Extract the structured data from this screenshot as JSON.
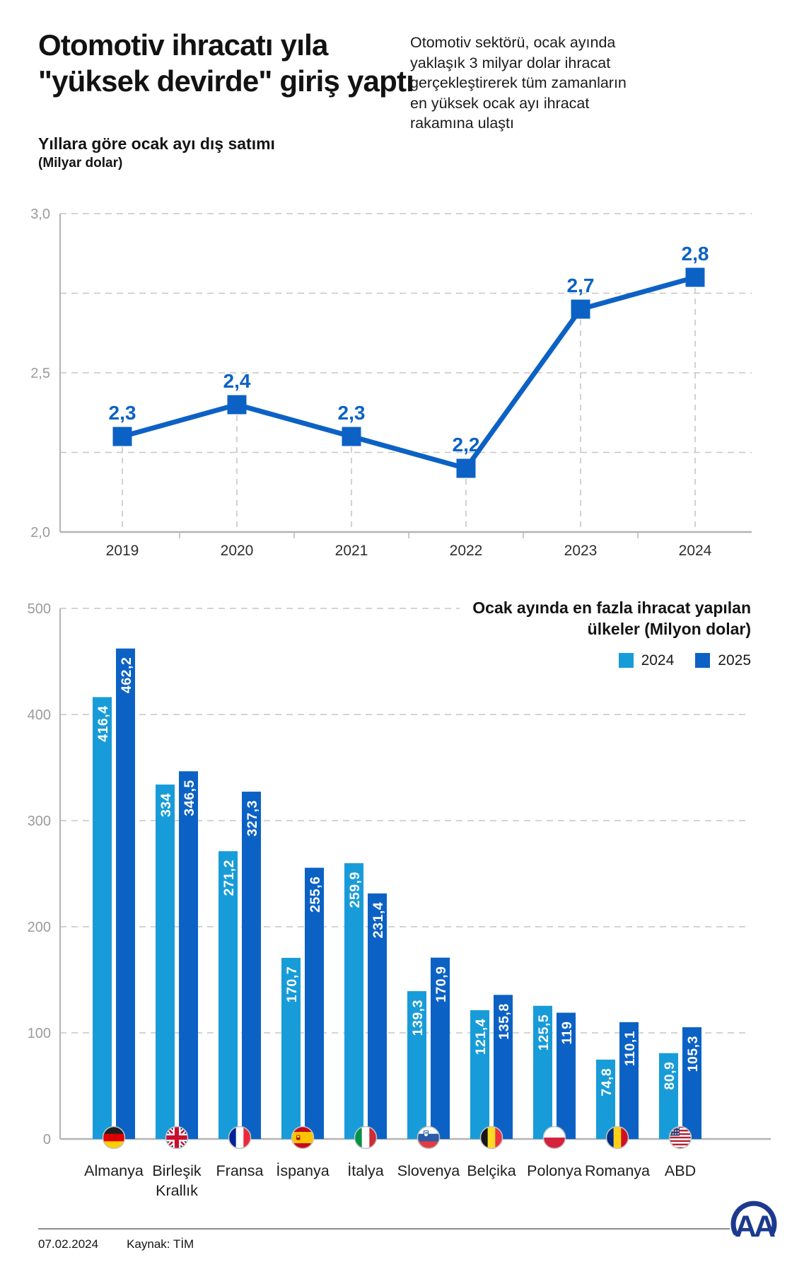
{
  "page": {
    "title": "Otomotiv ihracatı yıla \"yüksek devirde\" giriş yaptı",
    "subtitle": "Otomotiv sektörü, ocak ayında yaklaşık 3 milyar dolar ihracat gerçekleştirerek tüm zamanların en yüksek ocak ayı ihracat rakamına ulaştı"
  },
  "colors": {
    "primary_blue": "#0c62c4",
    "light_blue": "#189cd9",
    "logo_navy": "#1b3a8f",
    "grid_gray": "#c6c6c6",
    "axis_gray": "#9b9b9b"
  },
  "chart_data": [
    {
      "type": "line",
      "title": "Yıllara göre ocak ayı dış satımı",
      "unit_label": "(Milyar dolar)",
      "categories": [
        "2019",
        "2020",
        "2021",
        "2022",
        "2023",
        "2024"
      ],
      "values": [
        2.3,
        2.4,
        2.3,
        2.2,
        2.7,
        2.8
      ],
      "value_labels": [
        "2,3",
        "2,4",
        "2,3",
        "2,2",
        "2,7",
        "2,8"
      ],
      "ylim": [
        2.0,
        3.0
      ],
      "yticks": [
        {
          "value": 3.0,
          "label": "3,0"
        },
        {
          "value": 2.5,
          "label": "2,5"
        },
        {
          "value": 2.0,
          "label": "2,0"
        }
      ],
      "minor_gridlines": [
        2.75,
        2.25
      ],
      "grid": "dashed"
    },
    {
      "type": "bar",
      "title_line1": "Ocak ayında en fazla ihracat yapılan",
      "title_line2": "ülkeler (Milyon dolar)",
      "categories": [
        "Almanya",
        "Birleşik\nKrallık",
        "Fransa",
        "İspanya",
        "İtalya",
        "Slovenya",
        "Belçika",
        "Polonya",
        "Romanya",
        "ABD"
      ],
      "flags": [
        "de",
        "gb",
        "fr",
        "es",
        "it",
        "si",
        "be",
        "pl",
        "ro",
        "us"
      ],
      "series": [
        {
          "name": "2024",
          "values": [
            416.4,
            334,
            271.2,
            170.7,
            259.9,
            139.3,
            121.4,
            125.5,
            74.8,
            80.9
          ],
          "labels": [
            "416,4",
            "334",
            "271,2",
            "170,7",
            "259,9",
            "139,3",
            "121,4",
            "125,5",
            "74,8",
            "80,9"
          ]
        },
        {
          "name": "2025",
          "values": [
            462.2,
            346.5,
            327.3,
            255.6,
            231.4,
            170.9,
            135.8,
            119,
            110.1,
            105.3
          ],
          "labels": [
            "462,2",
            "346,5",
            "327,3",
            "255,6",
            "231,4",
            "170,9",
            "135,8",
            "119",
            "110,1",
            "105,3"
          ]
        }
      ],
      "ylim": [
        0,
        500
      ],
      "yticks": [
        500,
        400,
        300,
        200,
        100,
        0
      ],
      "grid": "dashed",
      "legend_position": "top-right"
    }
  ],
  "footer": {
    "date": "07.02.2024",
    "source": "Kaynak: TİM",
    "logo_text": "AA"
  }
}
